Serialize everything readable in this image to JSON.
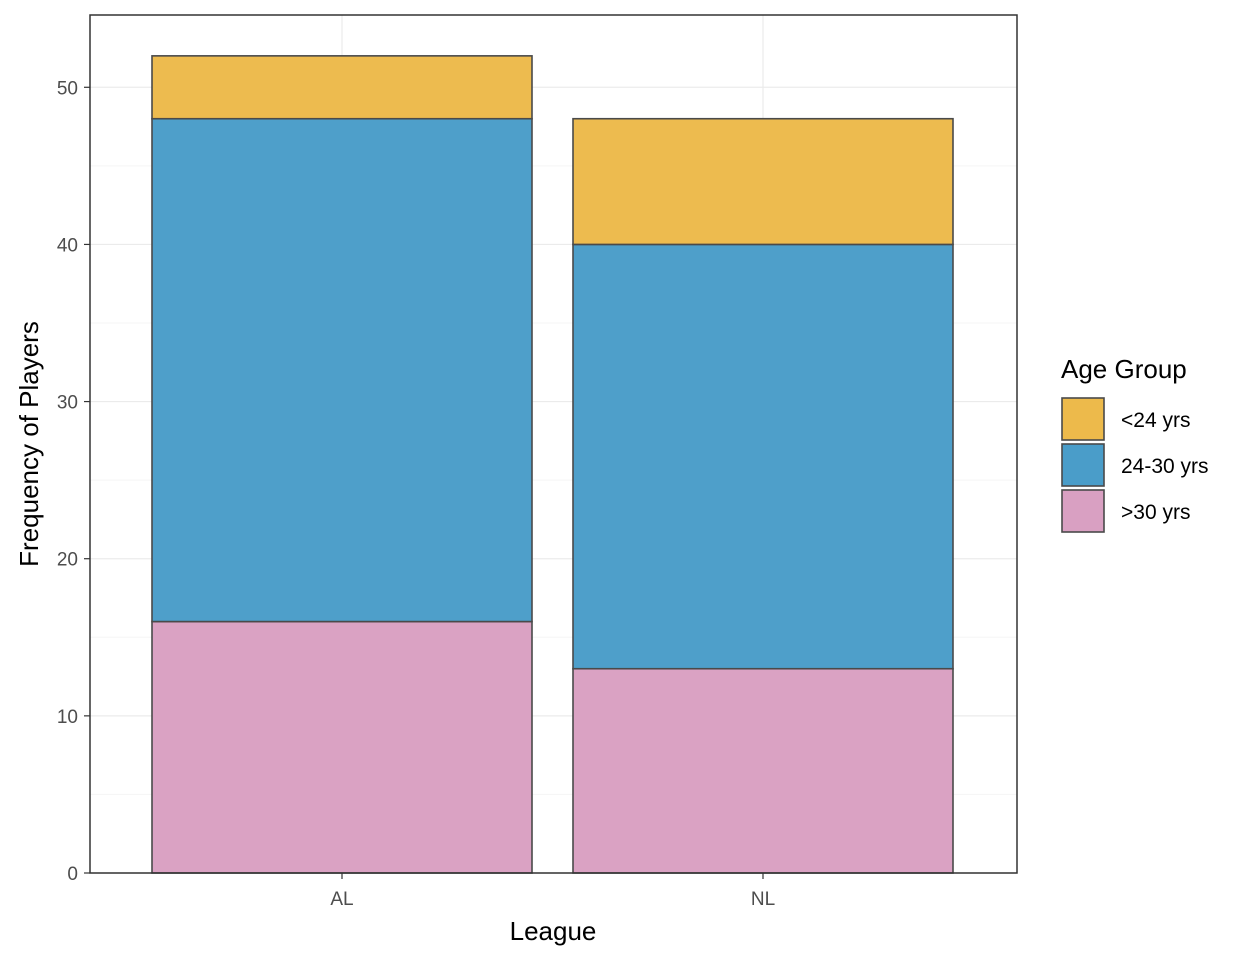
{
  "chart_data": {
    "type": "bar",
    "stacked": true,
    "title": "",
    "xlabel": "League",
    "ylabel": "Frequency of Players",
    "categories": [
      "AL",
      "NL"
    ],
    "ylim": [
      0,
      52
    ],
    "yticks": [
      0,
      10,
      20,
      30,
      40,
      50
    ],
    "grid": true,
    "legend": {
      "title": "Age Group",
      "position": "right"
    },
    "series": [
      {
        "name": ">30 yrs",
        "values": [
          16,
          13
        ],
        "color": "#D9A0C2"
      },
      {
        "name": "24-30 yrs",
        "values": [
          32,
          27
        ],
        "color": "#4A9DC9"
      },
      {
        "name": "<24 yrs",
        "values": [
          4,
          8
        ],
        "color": "#EDBA4B"
      }
    ],
    "legend_order": [
      "<24 yrs",
      "24-30 yrs",
      ">30 yrs"
    ]
  },
  "colors": {
    "bar_outline": "#4a4a4a",
    "panel_border": "#333333",
    "grid_major": "#ebebeb",
    "grid_minor": "#f5f5f5"
  }
}
